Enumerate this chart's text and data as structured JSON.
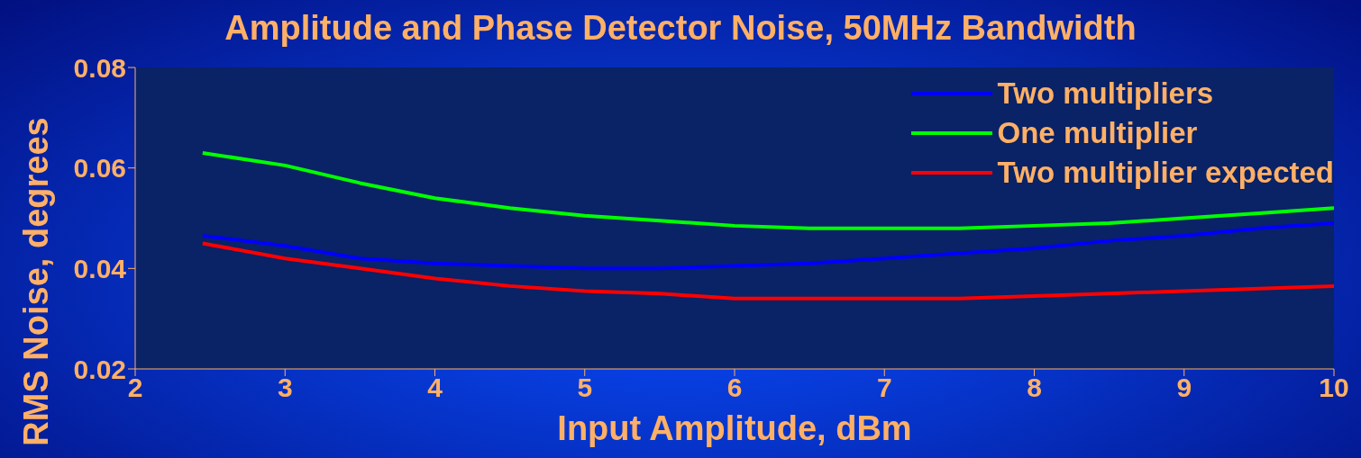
{
  "chart_data": {
    "type": "line",
    "title": "Amplitude and Phase Detector Noise, 50MHz Bandwidth",
    "xlabel": "Input Amplitude, dBm",
    "ylabel": "RMS Noise, degrees",
    "x": [
      2.45,
      3,
      3.5,
      4,
      4.5,
      5,
      5.5,
      6,
      6.5,
      7,
      7.5,
      8,
      8.5,
      9,
      9.5,
      10
    ],
    "series": [
      {
        "name": "Two multipliers",
        "color": "#0000ff",
        "values": [
          0.0465,
          0.0445,
          0.042,
          0.041,
          0.0405,
          0.04,
          0.04,
          0.0405,
          0.041,
          0.042,
          0.043,
          0.044,
          0.0455,
          0.0465,
          0.048,
          0.049
        ]
      },
      {
        "name": "One multiplier",
        "color": "#00ff00",
        "values": [
          0.063,
          0.0605,
          0.057,
          0.054,
          0.052,
          0.0505,
          0.0495,
          0.0485,
          0.048,
          0.048,
          0.048,
          0.0485,
          0.049,
          0.05,
          0.051,
          0.052
        ]
      },
      {
        "name": "Two multiplier expected",
        "color": "#ff0000",
        "values": [
          0.045,
          0.042,
          0.04,
          0.038,
          0.0365,
          0.0355,
          0.035,
          0.034,
          0.034,
          0.034,
          0.034,
          0.0345,
          0.035,
          0.0355,
          0.036,
          0.0365
        ]
      }
    ],
    "xlim": [
      2,
      10
    ],
    "xticks": [
      2,
      3,
      4,
      5,
      6,
      7,
      8,
      9,
      10
    ],
    "ylim": [
      0.02,
      0.08
    ],
    "yticks": [
      0.02,
      0.04,
      0.06,
      0.08
    ],
    "grid": false,
    "legend": "top right",
    "marker": "none",
    "line_style": "solid"
  }
}
